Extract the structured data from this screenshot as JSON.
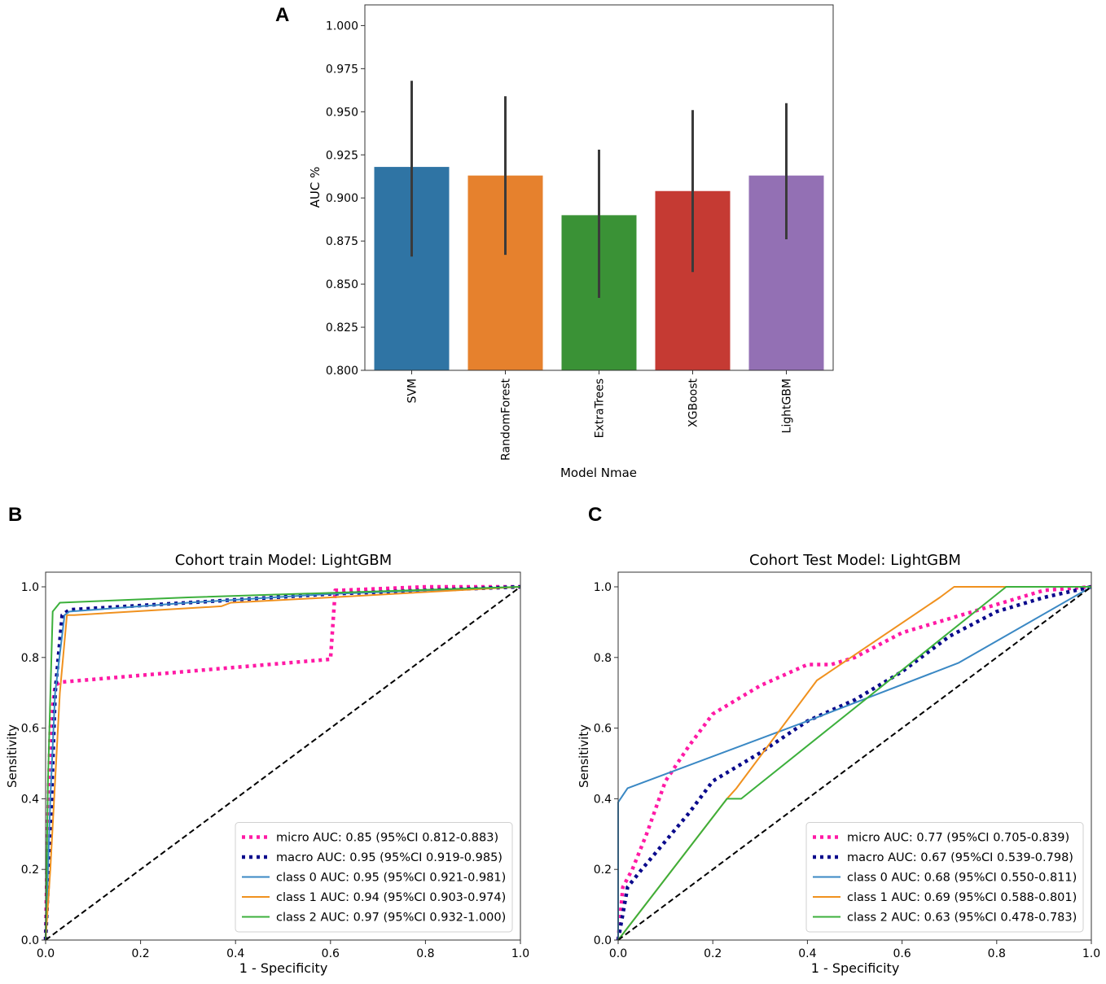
{
  "chart_data": [
    {
      "id": "A",
      "type": "bar",
      "panel_label": "A",
      "title": "",
      "xlabel": "Model Nmae",
      "ylabel": "AUC %",
      "ylim": [
        0.8,
        1.012
      ],
      "yticks": [
        "0.800",
        "0.825",
        "0.850",
        "0.875",
        "0.900",
        "0.925",
        "0.950",
        "0.975",
        "1.000"
      ],
      "categories": [
        "SVM",
        "RandomForest",
        "ExtraTrees",
        "XGBoost",
        "LightGBM"
      ],
      "values": [
        0.918,
        0.913,
        0.89,
        0.904,
        0.913
      ],
      "error_low": [
        0.866,
        0.867,
        0.842,
        0.857,
        0.876
      ],
      "error_high": [
        0.968,
        0.959,
        0.928,
        0.951,
        0.955
      ],
      "colors": [
        "#2f74a4",
        "#e6812d",
        "#3a9236",
        "#c53a33",
        "#9370b4"
      ]
    },
    {
      "id": "B",
      "type": "line",
      "panel_label": "B",
      "title": "Cohort train Model: LightGBM",
      "xlabel": "1 - Specificity",
      "ylabel": "Sensitivity",
      "xlim": [
        0,
        1.0
      ],
      "ylim": [
        0,
        1.0
      ],
      "xticks": [
        "0.0",
        "0.2",
        "0.4",
        "0.6",
        "0.8",
        "1.0"
      ],
      "yticks": [
        "0.0",
        "0.2",
        "0.4",
        "0.6",
        "0.8",
        "1.0"
      ],
      "legend_position": "bottom-right",
      "series": [
        {
          "name": "micro AUC: 0.85 (95%CI 0.812-0.883)",
          "color": "#ff1aa5",
          "style": "dotted",
          "x": [
            0,
            0.005,
            0.01,
            0.02,
            0.03,
            0.6,
            0.61,
            0.62,
            0.8,
            1.0
          ],
          "y": [
            0,
            0.35,
            0.6,
            0.72,
            0.73,
            0.795,
            0.99,
            0.99,
            1.0,
            1.0
          ]
        },
        {
          "name": "macro AUC: 0.95 (95%CI 0.919-0.985)",
          "color": "#0a0a8c",
          "style": "dotted",
          "x": [
            0,
            0.01,
            0.02,
            0.035,
            0.05,
            0.3,
            0.6,
            1.0
          ],
          "y": [
            0,
            0.3,
            0.7,
            0.92,
            0.935,
            0.955,
            0.98,
            1.0
          ]
        },
        {
          "name": "class 0 AUC: 0.95 (95%CI 0.921-0.981)",
          "color": "#3a88c4",
          "style": "solid",
          "x": [
            0,
            0.01,
            0.02,
            0.04,
            0.05,
            0.3,
            0.6,
            1.0
          ],
          "y": [
            0,
            0.4,
            0.7,
            0.92,
            0.93,
            0.955,
            0.98,
            1.0
          ]
        },
        {
          "name": "class 1 AUC: 0.94 (95%CI 0.903-0.974)",
          "color": "#f0911e",
          "style": "solid",
          "x": [
            0,
            0.01,
            0.03,
            0.045,
            0.06,
            0.37,
            0.39,
            0.6,
            1.0
          ],
          "y": [
            0,
            0.2,
            0.7,
            0.92,
            0.92,
            0.945,
            0.955,
            0.97,
            1.0
          ]
        },
        {
          "name": "class 2 AUC: 0.97 (95%CI 0.932-1.000)",
          "color": "#3cb03c",
          "style": "solid",
          "x": [
            0,
            0.005,
            0.015,
            0.03,
            0.3,
            1.0
          ],
          "y": [
            0,
            0.45,
            0.93,
            0.955,
            0.97,
            1.0
          ]
        },
        {
          "name": "chance",
          "color": "#000000",
          "style": "dashed",
          "legend": false,
          "x": [
            0,
            1
          ],
          "y": [
            0,
            1
          ]
        }
      ]
    },
    {
      "id": "C",
      "type": "line",
      "panel_label": "C",
      "title": "Cohort Test Model: LightGBM",
      "xlabel": "1 - Specificity",
      "ylabel": "Sensitivity",
      "xlim": [
        0,
        1.0
      ],
      "ylim": [
        0,
        1.0
      ],
      "xticks": [
        "0.0",
        "0.2",
        "0.4",
        "0.6",
        "0.8",
        "1.0"
      ],
      "yticks": [
        "0.0",
        "0.2",
        "0.4",
        "0.6",
        "0.8",
        "1.0"
      ],
      "legend_position": "bottom-right",
      "series": [
        {
          "name": "micro AUC: 0.77 (95%CI 0.705-0.839)",
          "color": "#ff1aa5",
          "style": "dotted",
          "x": [
            0,
            0.01,
            0.03,
            0.06,
            0.1,
            0.15,
            0.2,
            0.3,
            0.4,
            0.45,
            0.5,
            0.6,
            0.7,
            0.8,
            0.9,
            1.0
          ],
          "y": [
            0,
            0.15,
            0.2,
            0.3,
            0.45,
            0.55,
            0.64,
            0.72,
            0.78,
            0.78,
            0.8,
            0.87,
            0.91,
            0.95,
            0.99,
            1.0
          ]
        },
        {
          "name": "macro AUC: 0.67 (95%CI 0.539-0.798)",
          "color": "#0a0a8c",
          "style": "dotted",
          "x": [
            0,
            0.02,
            0.05,
            0.1,
            0.15,
            0.2,
            0.3,
            0.4,
            0.5,
            0.6,
            0.7,
            0.8,
            0.9,
            1.0
          ],
          "y": [
            0,
            0.15,
            0.2,
            0.28,
            0.36,
            0.45,
            0.53,
            0.62,
            0.68,
            0.76,
            0.86,
            0.93,
            0.97,
            1.0
          ]
        },
        {
          "name": "class 0 AUC: 0.68 (95%CI 0.550-0.811)",
          "color": "#3a88c4",
          "style": "solid",
          "x": [
            0,
            0,
            0.02,
            0.4,
            0.72,
            1.0
          ],
          "y": [
            0,
            0.39,
            0.43,
            0.62,
            0.785,
            1.0
          ]
        },
        {
          "name": "class 1 AUC: 0.69 (95%CI 0.588-0.801)",
          "color": "#f0911e",
          "style": "solid",
          "x": [
            0,
            0.23,
            0.25,
            0.42,
            0.68,
            0.71,
            0.82,
            1.0
          ],
          "y": [
            0,
            0.4,
            0.43,
            0.735,
            0.97,
            1.0,
            1.0,
            1.0
          ]
        },
        {
          "name": "class 2 AUC: 0.63 (95%CI 0.478-0.783)",
          "color": "#3cb03c",
          "style": "solid",
          "x": [
            0,
            0.23,
            0.26,
            0.82,
            1.0
          ],
          "y": [
            0,
            0.4,
            0.4,
            1.0,
            1.0
          ]
        },
        {
          "name": "chance",
          "color": "#000000",
          "style": "dashed",
          "legend": false,
          "x": [
            0,
            1
          ],
          "y": [
            0,
            1
          ]
        }
      ]
    }
  ]
}
